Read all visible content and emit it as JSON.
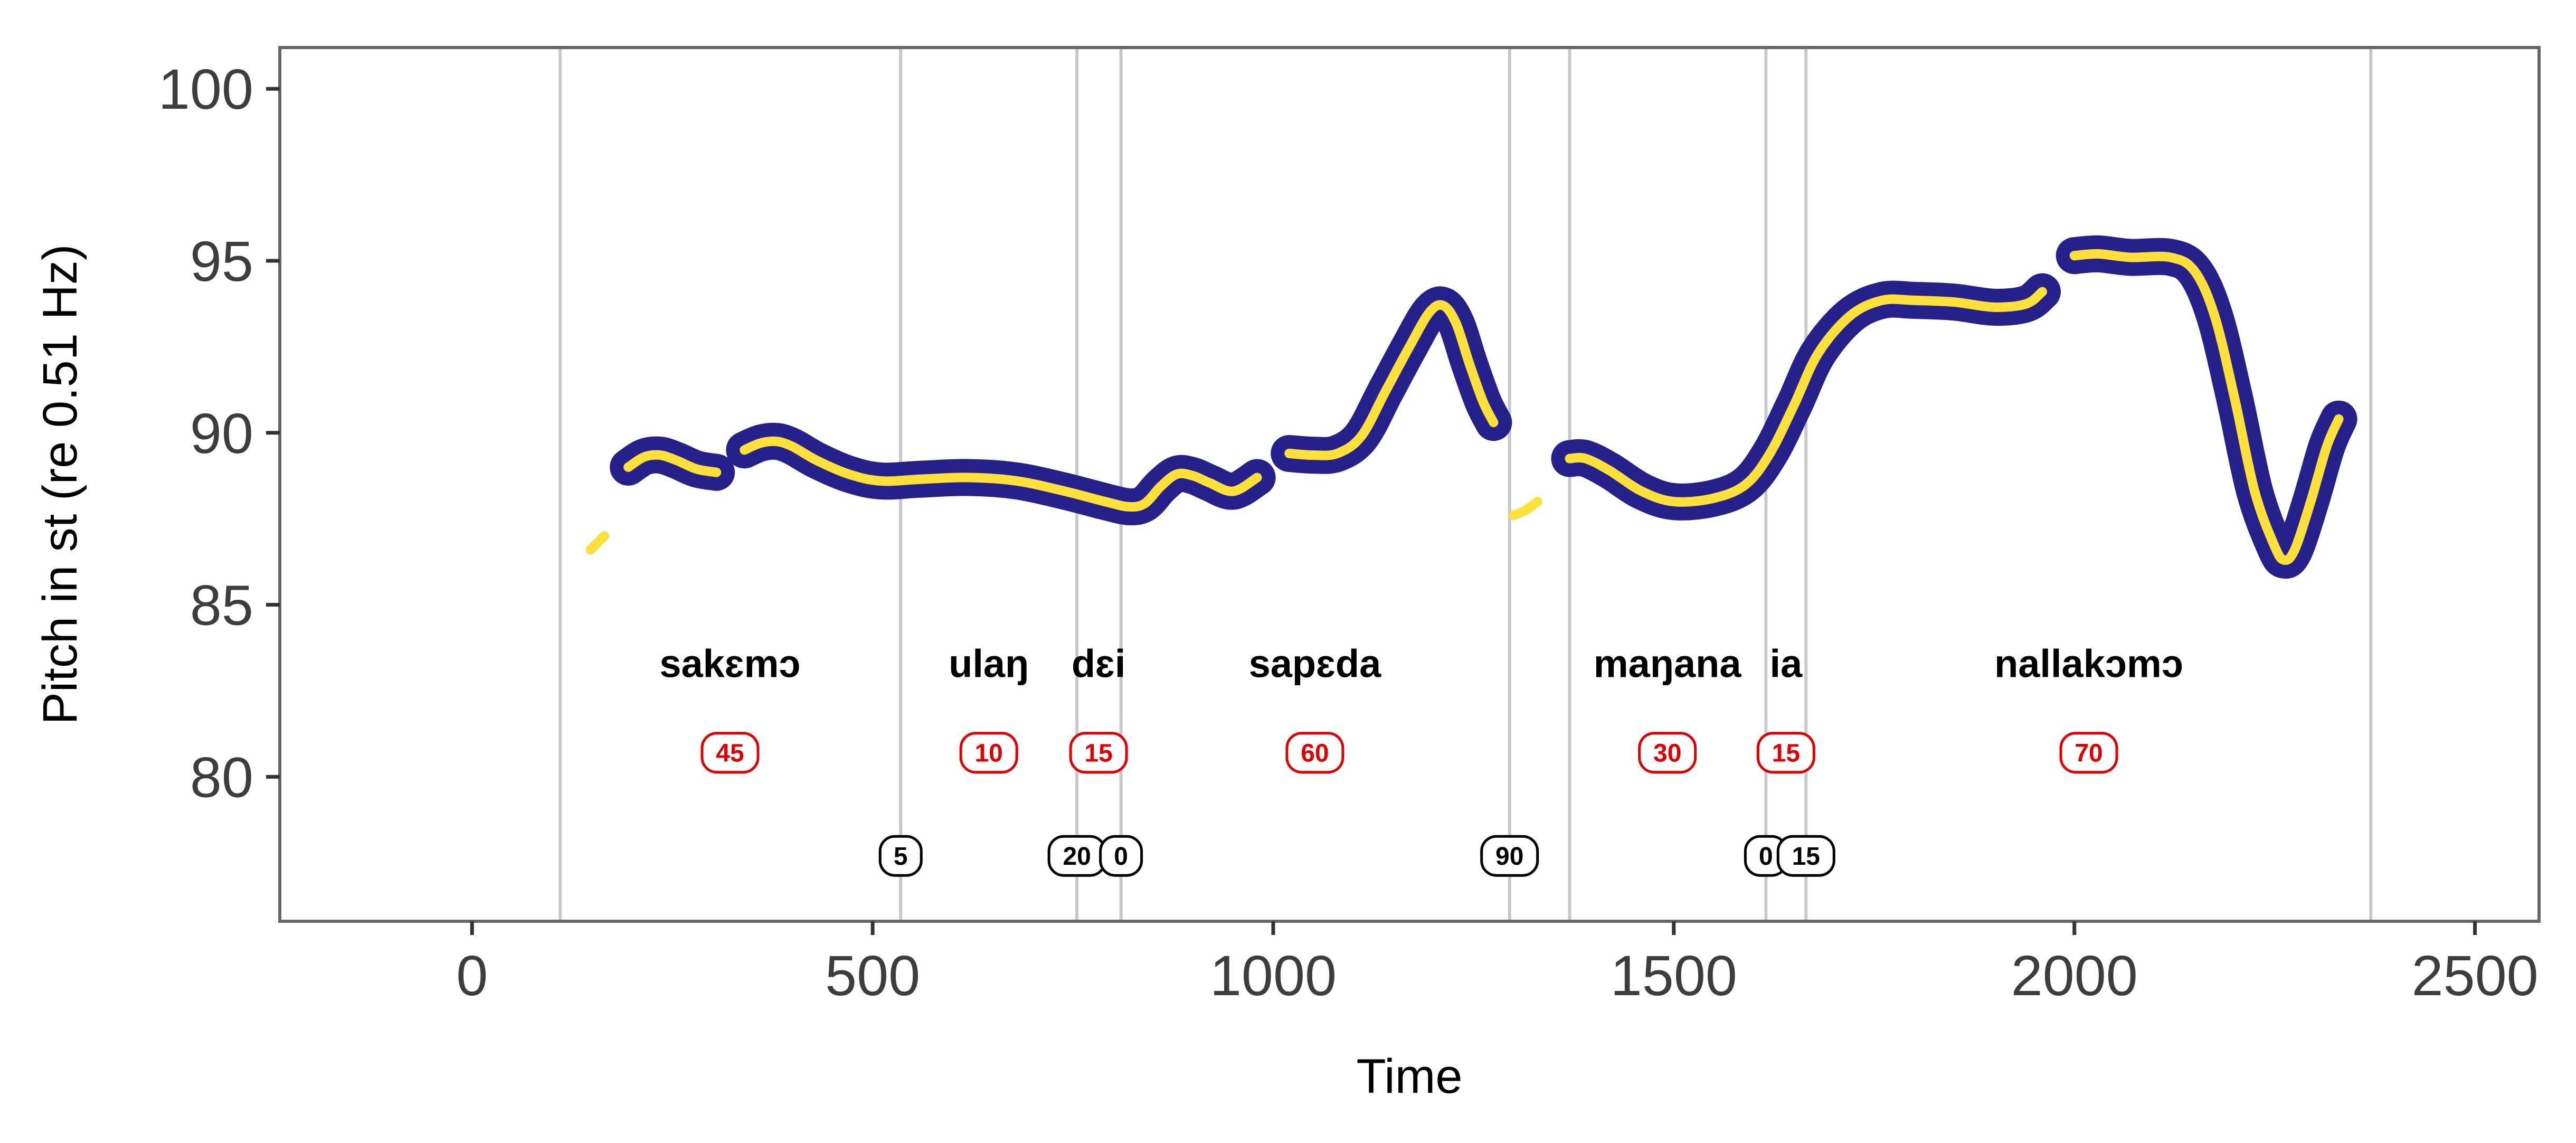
{
  "chart_data": {
    "type": "line",
    "title": "",
    "xlabel": "Time",
    "ylabel": "Pitch in st (re 0.51 Hz)",
    "xlim": [
      -240,
      2580
    ],
    "ylim": [
      75.8,
      101.2
    ],
    "x_ticks": [
      0,
      500,
      1000,
      1500,
      2000,
      2500
    ],
    "y_ticks": [
      80,
      85,
      90,
      95,
      100
    ],
    "grid": false,
    "legend": "none",
    "colors": {
      "pitch_line": "#FDE03A",
      "pitch_band": "#25208A",
      "boundary": "#c8c8c8",
      "frame": "#666666",
      "red_badge": "#e00000",
      "black_badge": "#000000"
    },
    "boundaries": [
      110,
      535,
      755,
      810,
      1295,
      1370,
      1615,
      1665,
      2370
    ],
    "pitch_segments": [
      {
        "points": [
          [
            148,
            86.6
          ],
          [
            165,
            87.0
          ]
        ]
      },
      {
        "points": [
          [
            195,
            89.0
          ],
          [
            215,
            89.3
          ],
          [
            235,
            89.35
          ],
          [
            255,
            89.2
          ],
          [
            280,
            88.95
          ],
          [
            305,
            88.85
          ]
        ]
      },
      {
        "points": [
          [
            340,
            89.5
          ],
          [
            360,
            89.7
          ],
          [
            380,
            89.75
          ],
          [
            400,
            89.6
          ],
          [
            430,
            89.2
          ],
          [
            470,
            88.8
          ],
          [
            510,
            88.6
          ],
          [
            560,
            88.65
          ],
          [
            620,
            88.7
          ],
          [
            680,
            88.6
          ],
          [
            740,
            88.3
          ],
          [
            790,
            88.0
          ],
          [
            820,
            87.85
          ],
          [
            840,
            87.95
          ],
          [
            860,
            88.45
          ],
          [
            880,
            88.8
          ],
          [
            900,
            88.75
          ],
          [
            920,
            88.55
          ],
          [
            950,
            88.3
          ],
          [
            980,
            88.7
          ]
        ]
      },
      {
        "points": [
          [
            1020,
            89.4
          ],
          [
            1050,
            89.35
          ],
          [
            1080,
            89.4
          ],
          [
            1110,
            89.9
          ],
          [
            1140,
            91.2
          ],
          [
            1170,
            92.5
          ],
          [
            1195,
            93.5
          ],
          [
            1212,
            93.7
          ],
          [
            1228,
            93.2
          ],
          [
            1245,
            92.0
          ],
          [
            1262,
            90.9
          ],
          [
            1275,
            90.3
          ]
        ]
      },
      {
        "points": [
          [
            1300,
            87.6
          ],
          [
            1315,
            87.75
          ],
          [
            1330,
            88.0
          ]
        ]
      },
      {
        "points": [
          [
            1370,
            89.25
          ],
          [
            1390,
            89.25
          ],
          [
            1420,
            88.9
          ],
          [
            1460,
            88.3
          ],
          [
            1500,
            88.0
          ],
          [
            1550,
            88.1
          ],
          [
            1590,
            88.5
          ],
          [
            1620,
            89.4
          ],
          [
            1650,
            90.8
          ],
          [
            1680,
            92.3
          ],
          [
            1720,
            93.4
          ],
          [
            1760,
            93.85
          ],
          [
            1800,
            93.85
          ],
          [
            1850,
            93.8
          ],
          [
            1900,
            93.65
          ],
          [
            1940,
            93.75
          ],
          [
            1960,
            94.1
          ]
        ]
      },
      {
        "points": [
          [
            2000,
            95.15
          ],
          [
            2030,
            95.2
          ],
          [
            2070,
            95.1
          ],
          [
            2120,
            95.1
          ],
          [
            2150,
            94.7
          ],
          [
            2175,
            93.4
          ],
          [
            2200,
            91.0
          ],
          [
            2225,
            88.3
          ],
          [
            2250,
            86.7
          ],
          [
            2262,
            86.3
          ],
          [
            2275,
            86.6
          ],
          [
            2295,
            88.0
          ],
          [
            2315,
            89.6
          ],
          [
            2330,
            90.4
          ]
        ]
      }
    ],
    "words": [
      {
        "text": "sakɛmɔ",
        "x": 322
      },
      {
        "text": "ulaŋ",
        "x": 645
      },
      {
        "text": "dɛi",
        "x": 782
      },
      {
        "text": "sapɛda",
        "x": 1052
      },
      {
        "text": "maŋana",
        "x": 1492
      },
      {
        "text": "ia",
        "x": 1640
      },
      {
        "text": "nallakɔmɔ",
        "x": 2018
      }
    ],
    "word_y": 83.3,
    "red_badges": [
      {
        "value": "45",
        "x": 322
      },
      {
        "value": "10",
        "x": 645
      },
      {
        "value": "15",
        "x": 782
      },
      {
        "value": "60",
        "x": 1052
      },
      {
        "value": "30",
        "x": 1492
      },
      {
        "value": "15",
        "x": 1640
      },
      {
        "value": "70",
        "x": 2018
      }
    ],
    "red_badge_y": 80.7,
    "black_badges": [
      {
        "value": "5",
        "x": 535
      },
      {
        "value": "20",
        "x": 755
      },
      {
        "value": "0",
        "x": 810
      },
      {
        "value": "90",
        "x": 1295
      },
      {
        "value": "0",
        "x": 1615
      },
      {
        "value": "15",
        "x": 1665
      }
    ],
    "black_badge_y": 77.7
  }
}
